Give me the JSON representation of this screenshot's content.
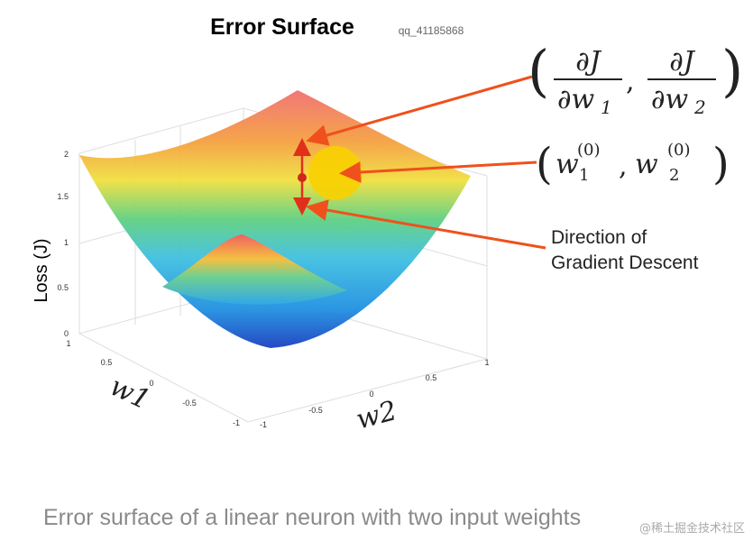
{
  "header": {
    "title": "Error Surface",
    "watermark": "qq_41185868"
  },
  "plot": {
    "z_label": "Loss (J)",
    "z_ticks": [
      "0",
      "0.5",
      "1",
      "1.5",
      "2"
    ],
    "w1_label": "w1",
    "w1_ticks": [
      "1",
      "0.5",
      "0",
      "-0.5",
      "-1"
    ],
    "w2_label": "w2",
    "w2_ticks": [
      "-1",
      "-0.5",
      "0",
      "0.5",
      "1"
    ]
  },
  "annotations": {
    "gradient": {
      "left_paren": "(",
      "num_1": "∂J",
      "den_1": "∂w",
      "den_1_sub": "1",
      "comma": ",",
      "num_2": "∂J",
      "den_2": "∂w",
      "den_2_sub": "2",
      "right_paren": ")"
    },
    "weights": {
      "left_paren": "(",
      "w_1": "w",
      "w_1_sup": "(0)",
      "w_1_sub": "1",
      "comma": ",",
      "w_2": "w",
      "w_2_sup": "(0)",
      "w_2_sub": "2",
      "right_paren": ")"
    },
    "direction": [
      "Direction of",
      "Gradient Descent"
    ]
  },
  "caption": "Error surface of a linear neuron with two input weights",
  "site_watermark": "@稀土掘金技术社区"
}
